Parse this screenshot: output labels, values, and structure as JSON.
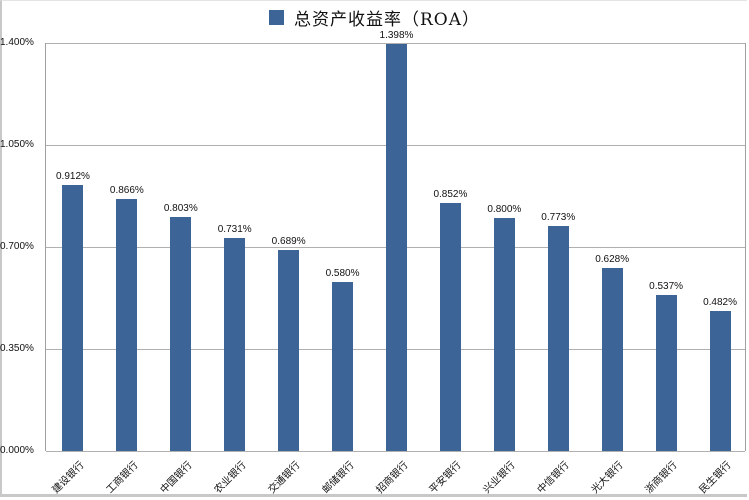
{
  "chart_data": {
    "type": "bar",
    "title": "总资产收益率（ROA）",
    "legend": [
      {
        "name": "总资产收益率（ROA）",
        "color": "#3c6497"
      }
    ],
    "legend_position": "top",
    "categories": [
      "建设银行",
      "工商银行",
      "中国银行",
      "农业银行",
      "交通银行",
      "邮储银行",
      "招商银行",
      "平安银行",
      "兴业银行",
      "中信银行",
      "光大银行",
      "浙商银行",
      "民生银行"
    ],
    "series": [
      {
        "name": "总资产收益率（ROA）",
        "values": [
          0.912,
          0.866,
          0.803,
          0.731,
          0.689,
          0.58,
          1.398,
          0.852,
          0.8,
          0.773,
          0.628,
          0.537,
          0.482
        ],
        "color": "#3c6497"
      }
    ],
    "data_labels": [
      "0.912%",
      "0.866%",
      "0.803%",
      "0.731%",
      "0.689%",
      "0.580%",
      "1.398%",
      "0.852%",
      "0.800%",
      "0.773%",
      "0.628%",
      "0.537%",
      "0.482%"
    ],
    "xlabel": "",
    "ylabel": "",
    "ylim": [
      0,
      1.4
    ],
    "yticks": [
      "0.000%",
      "0.350%",
      "0.700%",
      "1.050%",
      "1.400%"
    ],
    "ytick_values": [
      0,
      0.35,
      0.7,
      1.05,
      1.4
    ],
    "grid": true
  }
}
